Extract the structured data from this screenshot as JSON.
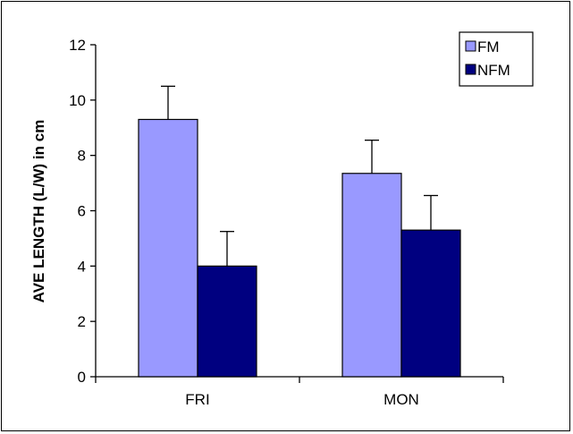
{
  "chart_data": {
    "type": "bar",
    "title": "",
    "xlabel": "",
    "ylabel": "AVE LENGTH (L/W) in cm",
    "ylim": [
      0,
      12
    ],
    "yticks": [
      0,
      2,
      4,
      6,
      8,
      10,
      12
    ],
    "categories": [
      "FRI",
      "MON"
    ],
    "series": [
      {
        "name": "FM",
        "color": "#9999ff",
        "values": [
          9.3,
          7.35
        ],
        "error": [
          1.2,
          1.2
        ]
      },
      {
        "name": "NFM",
        "color": "#000080",
        "values": [
          4.0,
          5.3
        ],
        "error": [
          1.25,
          1.25
        ]
      }
    ],
    "grid": false,
    "legend_position": "top-right"
  }
}
